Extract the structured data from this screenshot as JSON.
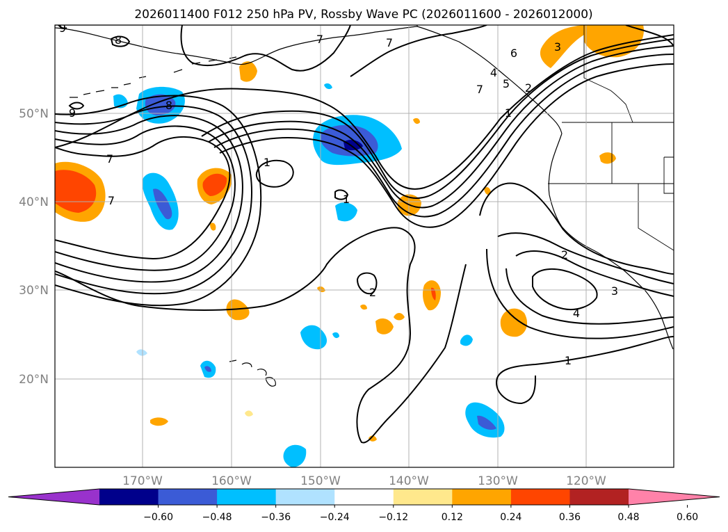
{
  "title": "2026011400 F012 250 hPa PV, Rossby Wave PC (2026011600 - 2026012000)",
  "map": {
    "lon_range": [
      -180,
      -110
    ],
    "lat_range": [
      10,
      60
    ],
    "lon_ticks": [
      {
        "value": -170,
        "label": "170°W"
      },
      {
        "value": -160,
        "label": "160°W"
      },
      {
        "value": -150,
        "label": "150°W"
      },
      {
        "value": -140,
        "label": "140°W"
      },
      {
        "value": -130,
        "label": "130°W"
      },
      {
        "value": -120,
        "label": "120°W"
      }
    ],
    "lat_ticks": [
      {
        "value": 20,
        "label": "20°N"
      },
      {
        "value": 30,
        "label": "30°N"
      },
      {
        "value": 40,
        "label": "40°N"
      },
      {
        "value": 50,
        "label": "50°N"
      }
    ],
    "grid": true,
    "contour_labels": [
      "9",
      "8",
      "7",
      "7",
      "6",
      "5",
      "4",
      "3",
      "2",
      "1",
      "7",
      "1",
      "7",
      "2",
      "2",
      "3",
      "4",
      "1",
      "9",
      "8",
      "7",
      "1"
    ]
  },
  "colorbar": {
    "ticks": [
      "−0.60",
      "−0.48",
      "−0.36",
      "−0.24",
      "−0.12",
      "0.12",
      "0.24",
      "0.36",
      "0.48",
      "0.60"
    ],
    "colors": [
      "#9932cc",
      "#00008b",
      "#3b5bd6",
      "#00bfff",
      "#b0e2ff",
      "#ffffff",
      "#ffe88c",
      "#ffa500",
      "#ff4500",
      "#b22222",
      "#ff82a9"
    ],
    "extend": "both"
  },
  "colors": {
    "neg_deep": "#00008b",
    "neg_mid": "#3b5bd6",
    "neg_cyan": "#00bfff",
    "neg_light": "#b0e2ff",
    "pos_light": "#ffe88c",
    "pos_orange": "#ffa500",
    "pos_red": "#ff4500",
    "grid": "#b0b0b0"
  }
}
